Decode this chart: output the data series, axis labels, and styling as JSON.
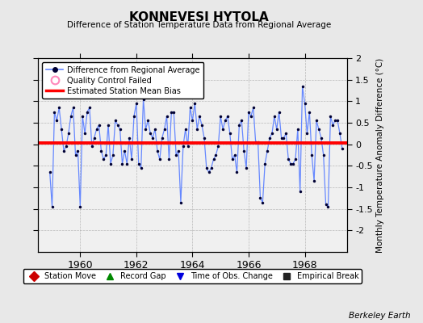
{
  "title": "KONNEVESI HYTOLA",
  "subtitle": "Difference of Station Temperature Data from Regional Average",
  "ylabel": "Monthly Temperature Anomaly Difference (°C)",
  "background_color": "#e8e8e8",
  "plot_bg_color": "#f0f0f0",
  "bias_value": 0.03,
  "ylim": [
    -2.5,
    2.0
  ],
  "yticks": [
    -2.0,
    -1.5,
    -1.0,
    -0.5,
    0.0,
    0.5,
    1.0,
    1.5,
    2.0
  ],
  "xmin": 1958.5,
  "xmax": 1969.5,
  "xticks": [
    1960,
    1962,
    1964,
    1966,
    1968
  ],
  "data": {
    "x": [
      1958.917,
      1959.0,
      1959.083,
      1959.167,
      1959.25,
      1959.333,
      1959.417,
      1959.5,
      1959.583,
      1959.667,
      1959.75,
      1959.833,
      1959.917,
      1960.0,
      1960.083,
      1960.167,
      1960.25,
      1960.333,
      1960.417,
      1960.5,
      1960.583,
      1960.667,
      1960.75,
      1960.833,
      1960.917,
      1961.0,
      1961.083,
      1961.167,
      1961.25,
      1961.333,
      1961.417,
      1961.5,
      1961.583,
      1961.667,
      1961.75,
      1961.833,
      1961.917,
      1962.0,
      1962.083,
      1962.167,
      1962.25,
      1962.333,
      1962.417,
      1962.5,
      1962.583,
      1962.667,
      1962.75,
      1962.833,
      1962.917,
      1963.0,
      1963.083,
      1963.167,
      1963.25,
      1963.333,
      1963.417,
      1963.5,
      1963.583,
      1963.667,
      1963.75,
      1963.833,
      1963.917,
      1964.0,
      1964.083,
      1964.167,
      1964.25,
      1964.333,
      1964.417,
      1964.5,
      1964.583,
      1964.667,
      1964.75,
      1964.833,
      1964.917,
      1965.0,
      1965.083,
      1965.167,
      1965.25,
      1965.333,
      1965.417,
      1965.5,
      1965.583,
      1965.667,
      1965.75,
      1965.833,
      1965.917,
      1966.0,
      1966.083,
      1966.167,
      1966.25,
      1966.333,
      1966.417,
      1966.5,
      1966.583,
      1966.667,
      1966.75,
      1966.833,
      1966.917,
      1967.0,
      1967.083,
      1967.167,
      1967.25,
      1967.333,
      1967.417,
      1967.5,
      1967.583,
      1967.667,
      1967.75,
      1967.833,
      1967.917,
      1968.0,
      1968.083,
      1968.167,
      1968.25,
      1968.333,
      1968.417,
      1968.5,
      1968.583,
      1968.667,
      1968.75,
      1968.833,
      1968.917,
      1969.0,
      1969.083,
      1969.167,
      1969.25,
      1969.333
    ],
    "y": [
      -0.65,
      -1.45,
      0.75,
      0.55,
      0.85,
      0.35,
      -0.15,
      -0.05,
      0.25,
      0.65,
      0.85,
      -0.25,
      -0.15,
      -1.45,
      0.65,
      0.25,
      0.75,
      0.85,
      -0.05,
      0.15,
      0.35,
      0.45,
      -0.15,
      -0.35,
      -0.25,
      0.45,
      -0.45,
      -0.25,
      0.55,
      0.45,
      0.35,
      -0.45,
      -0.15,
      -0.45,
      0.15,
      -0.35,
      0.65,
      0.95,
      -0.45,
      -0.55,
      1.05,
      0.35,
      0.55,
      0.25,
      0.15,
      0.35,
      -0.15,
      -0.35,
      0.15,
      0.35,
      0.65,
      -0.35,
      0.75,
      0.75,
      -0.25,
      -0.15,
      -1.35,
      -0.05,
      0.35,
      -0.05,
      0.85,
      0.55,
      0.95,
      0.35,
      0.65,
      0.45,
      0.15,
      -0.55,
      -0.65,
      -0.55,
      -0.35,
      -0.25,
      -0.05,
      0.65,
      0.35,
      0.55,
      0.65,
      0.25,
      -0.35,
      -0.25,
      -0.65,
      0.45,
      0.55,
      -0.15,
      -0.55,
      0.75,
      0.65,
      0.85,
      0.05,
      0.05,
      -1.25,
      -1.35,
      -0.45,
      -0.15,
      0.15,
      0.25,
      0.65,
      0.35,
      0.75,
      0.15,
      0.15,
      0.25,
      -0.35,
      -0.45,
      -0.45,
      -0.35,
      0.35,
      -1.1,
      1.35,
      0.95,
      0.25,
      0.75,
      -0.25,
      -0.85,
      0.55,
      0.35,
      0.15,
      -0.25,
      -1.4,
      -1.45,
      0.65,
      0.45,
      0.55,
      0.55,
      0.25,
      -0.1
    ]
  },
  "line_color": "#6688ff",
  "marker_color": "#000033",
  "bias_color": "#ff0000",
  "legend_items": [
    {
      "label": "Difference from Regional Average",
      "color": "#6688ff",
      "type": "line_marker"
    },
    {
      "label": "Quality Control Failed",
      "color": "#ffaacc",
      "type": "circle"
    },
    {
      "label": "Estimated Station Mean Bias",
      "color": "#ff0000",
      "type": "line"
    }
  ],
  "bottom_legend": [
    {
      "label": "Station Move",
      "color": "#cc0000",
      "marker": "D"
    },
    {
      "label": "Record Gap",
      "color": "#008800",
      "marker": "^"
    },
    {
      "label": "Time of Obs. Change",
      "color": "#0000dd",
      "marker": "v"
    },
    {
      "label": "Empirical Break",
      "color": "#222222",
      "marker": "s"
    }
  ],
  "berkeley_earth_text": "Berkeley Earth"
}
